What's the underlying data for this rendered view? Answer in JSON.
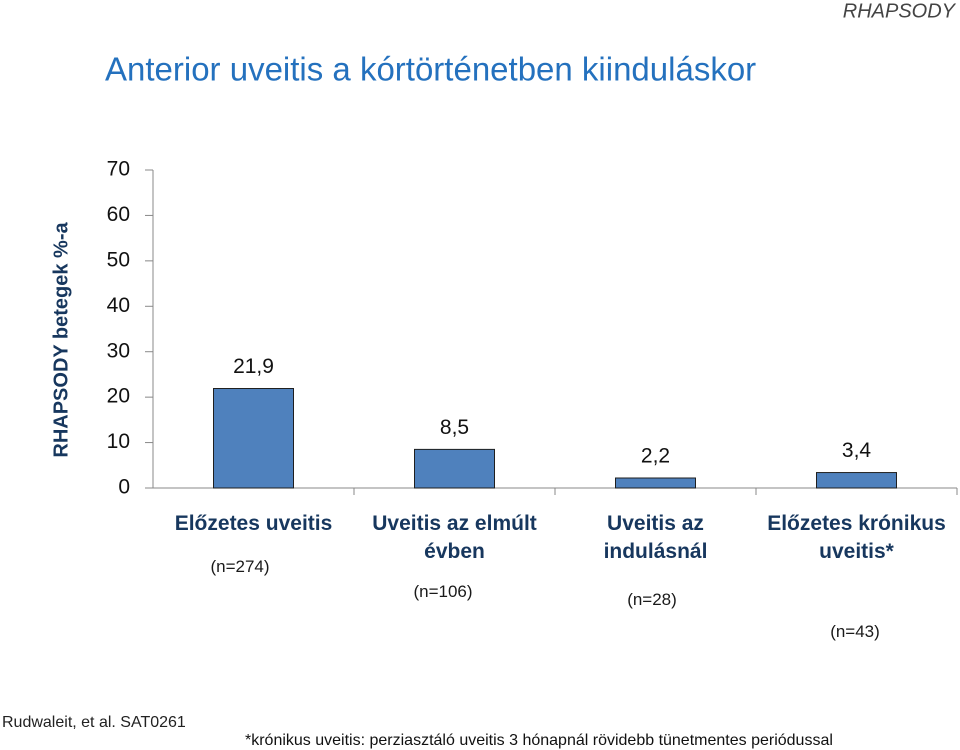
{
  "header": "RHAPSODY",
  "chart_data": {
    "type": "bar",
    "title": "Anterior uveitis a kórtörténetben kiinduláskor",
    "y_label": "RHAPSODY betegek %-a",
    "categories": [
      "Előzetes uveitis",
      "Uveitis az elmúlt évben",
      "Uveitis az indulásnál",
      "Előzetes krónikus uveitis*"
    ],
    "sample_sizes": [
      "(n=274)",
      "(n=106)",
      "(n=28)",
      "(n=43)"
    ],
    "values": [
      21.9,
      8.5,
      2.2,
      3.4
    ],
    "value_labels": [
      "21,9",
      "8,5",
      "2,2",
      "3,4"
    ],
    "color": "#4f81bd",
    "ylim": [
      0,
      70
    ],
    "yticks": [
      0,
      10,
      20,
      30,
      40,
      50,
      60,
      70
    ],
    "grid": false
  },
  "footer": {
    "source": "Rudwaleit, et al. SAT0261",
    "note": "*krónikus uveitis: perziasztáló uveitis 3 hónapnál rövidebb tünetmentes periódussal"
  }
}
